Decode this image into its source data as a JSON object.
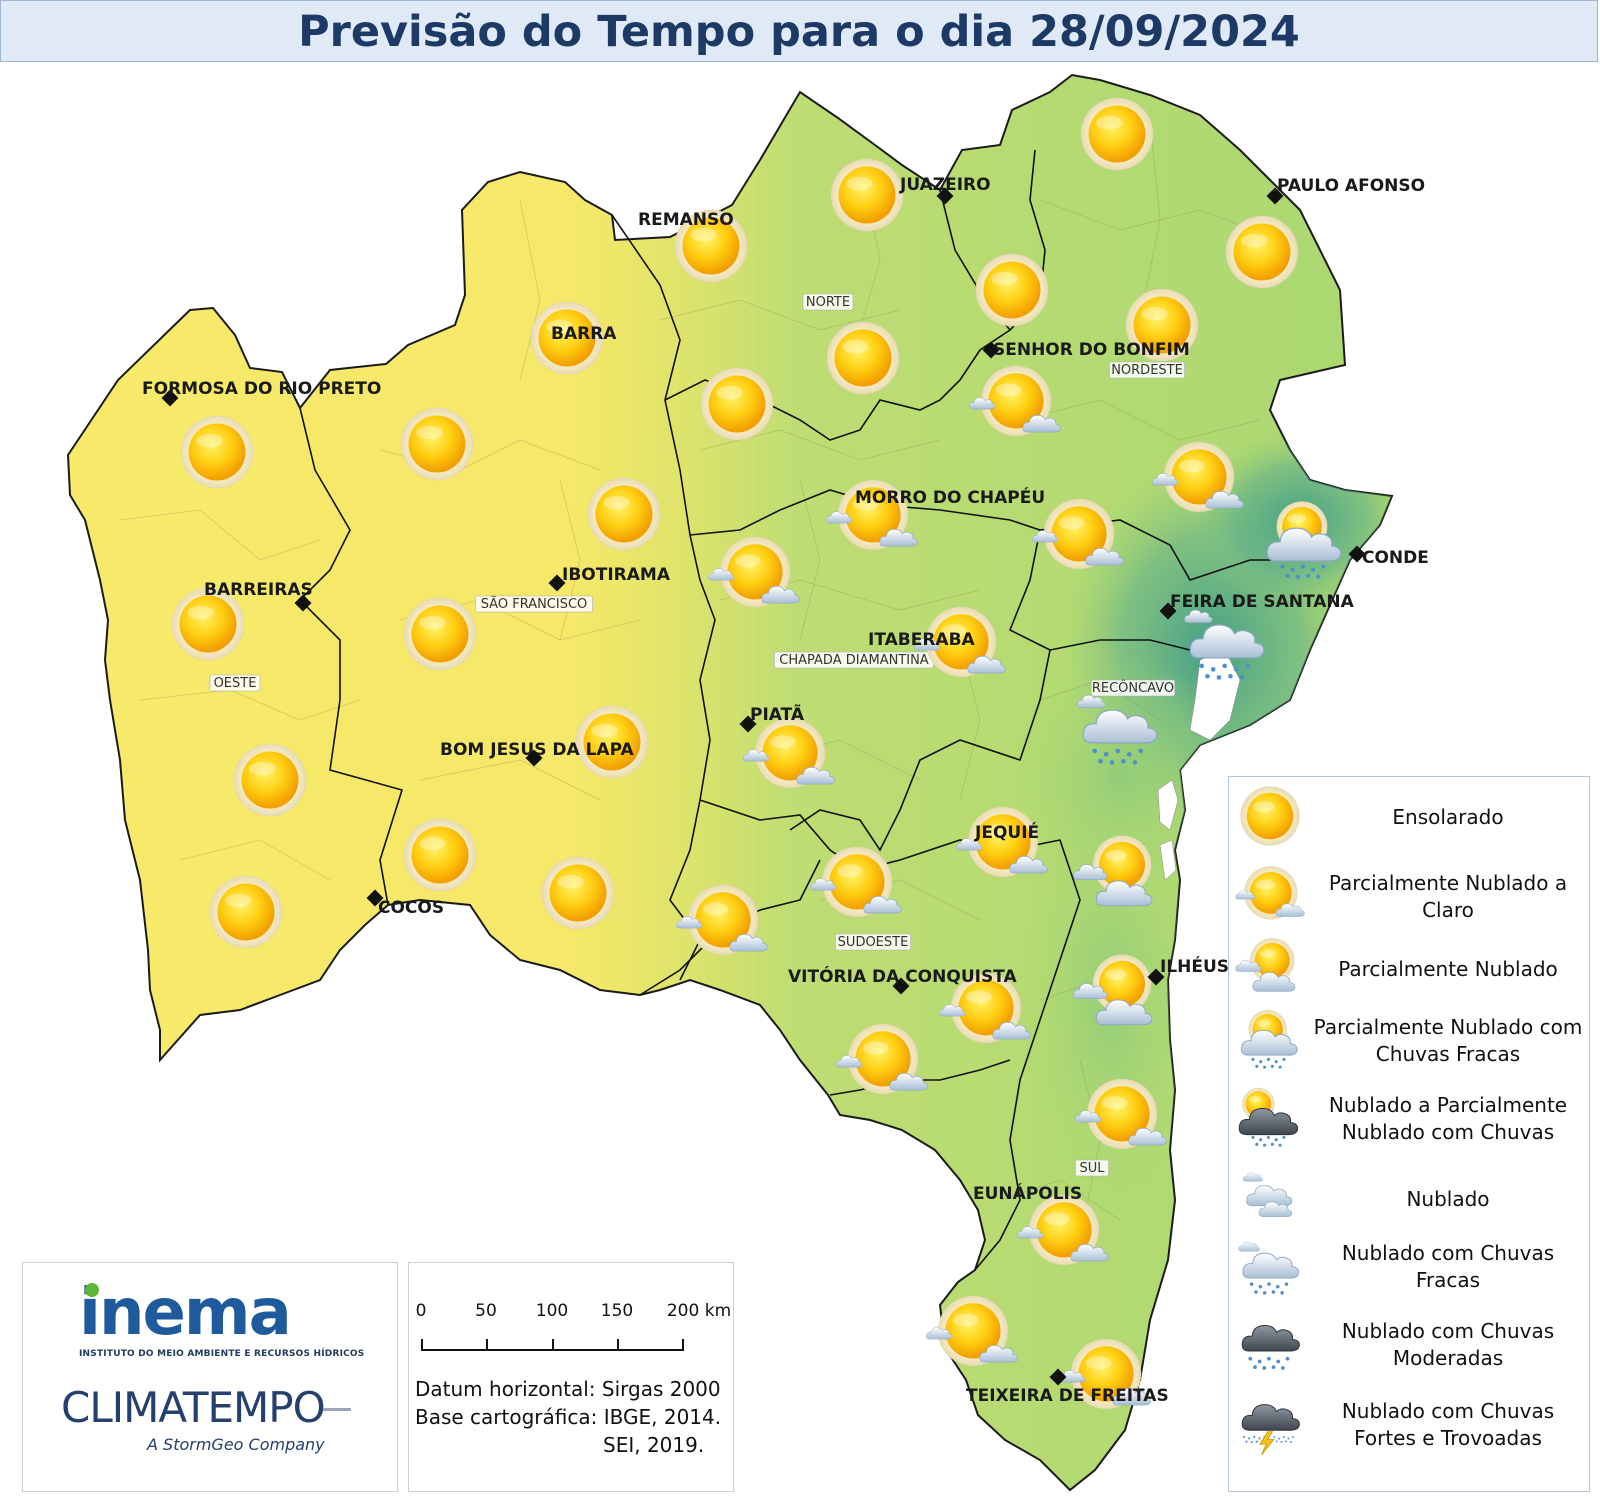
{
  "title": "Previsão do Tempo para o dia 28/09/2024",
  "colors": {
    "sunny": "#f7e96a",
    "partly": "#b6dc77",
    "rain": "#4fa98a",
    "title_text": "#1d3a66",
    "title_bg": "#dfeaf6"
  },
  "cities": [
    {
      "name": "JUAZEIRO"
    },
    {
      "name": "PAULO AFONSO"
    },
    {
      "name": "REMANSO"
    },
    {
      "name": "BARRA"
    },
    {
      "name": "SENHOR DO BONFIM"
    },
    {
      "name": "FORMOSA DO RIO PRETO"
    },
    {
      "name": "MORRO DO CHAPÉU"
    },
    {
      "name": "CONDE"
    },
    {
      "name": "IBOTIRAMA"
    },
    {
      "name": "BARREIRAS"
    },
    {
      "name": "FEIRA DE SANTANA"
    },
    {
      "name": "ITABERABA"
    },
    {
      "name": "PIATÃ"
    },
    {
      "name": "BOM JESUS DA LAPA"
    },
    {
      "name": "JEQUIÉ"
    },
    {
      "name": "COCOS"
    },
    {
      "name": "ILHÉUS"
    },
    {
      "name": "VITÓRIA DA CONQUISTA"
    },
    {
      "name": "EUNÁPOLIS"
    },
    {
      "name": "TEIXEIRA DE FREITAS"
    }
  ],
  "regions": [
    "NORTE",
    "NORDESTE",
    "SÃO FRANCISCO",
    "OESTE",
    "CHAPADA DIAMANTINA",
    "RECÔNCAVO",
    "SUDOESTE",
    "SUL"
  ],
  "icon_types": {
    "sunny": "sun-icon",
    "partly_light": "sun-small-cloud-icon",
    "partly": "sun-cloud-icon",
    "partly_light_rain": "sun-cloud-light-rain-icon",
    "cloudy_partly_rain": "sun-dark-cloud-rain-icon",
    "cloudy": "cloud-icon",
    "cloudy_light_rain": "cloud-light-rain-icon",
    "cloudy_moderate_rain": "dark-cloud-rain-icon",
    "cloudy_storm": "storm-cloud-lightning-icon"
  },
  "legend": [
    {
      "type": "sunny",
      "label": "Ensolarado"
    },
    {
      "type": "partly_light",
      "label": "Parcialmente Nublado a Claro"
    },
    {
      "type": "partly",
      "label": "Parcialmente Nublado"
    },
    {
      "type": "partly_light_rain",
      "label": "Parcialmente Nublado com Chuvas Fracas"
    },
    {
      "type": "cloudy_partly_rain",
      "label": "Nublado a Parcialmente Nublado com Chuvas"
    },
    {
      "type": "cloudy",
      "label": "Nublado"
    },
    {
      "type": "cloudy_light_rain",
      "label": "Nublado com Chuvas Fracas"
    },
    {
      "type": "cloudy_moderate_rain",
      "label": "Nublado com Chuvas Moderadas"
    },
    {
      "type": "cloudy_storm",
      "label": "Nublado com Chuvas Fortes e Trovoadas"
    }
  ],
  "forecast_icons": [
    "sunny",
    "sunny",
    "sunny",
    "sunny",
    "sunny",
    "sunny",
    "sunny",
    "sunny",
    "sunny",
    "sunny",
    "sunny",
    "sunny",
    "sunny",
    "sunny",
    "sunny",
    "sunny",
    "sunny",
    "sunny",
    "sunny",
    "sunny",
    "partly_light",
    "partly_light",
    "partly_light",
    "partly_light",
    "partly_light",
    "partly_light",
    "partly_light",
    "partly_light",
    "partly_light",
    "partly_light",
    "partly_light",
    "partly_light",
    "partly_light",
    "partly_light",
    "partly_light",
    "partly_light",
    "partly",
    "partly",
    "partly_light_rain",
    "cloudy_light_rain",
    "cloudy_light_rain"
  ],
  "logos": {
    "inema": "inema",
    "inema_sub": "INSTITUTO DO MEIO AMBIENTE E RECURSOS HÍDRICOS",
    "climatempo": "CLIMATEMPO",
    "climatempo_tag": "A StormGeo Company"
  },
  "scale": {
    "ticks": [
      "0",
      "50",
      "100",
      "150",
      "200 km"
    ],
    "datum_label": "Datum horizontal:",
    "datum_value": "Sirgas 2000",
    "base_label": "Base cartográfica:",
    "base_value": "IBGE, 2014.",
    "base_value2": "SEI, 2019."
  }
}
